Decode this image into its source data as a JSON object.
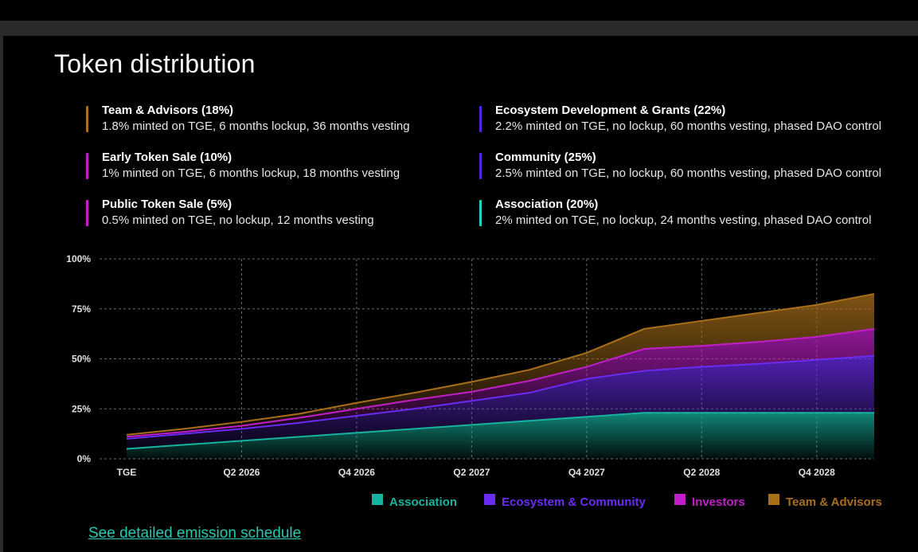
{
  "title": "Token distribution",
  "allocations": [
    {
      "name": "Team & Advisors  (18%)",
      "desc": "1.8% minted on TGE, 6 months lockup, 36 months vesting",
      "color": "#a86f1a"
    },
    {
      "name": "Early Token Sale (10%)",
      "desc": "1% minted on TGE, 6 months lockup, 18 months vesting",
      "color": "#c01fc8"
    },
    {
      "name": "Public Token Sale (5%)",
      "desc": "0.5% minted on TGE, no lockup, 12 months vesting",
      "color": "#c01fc8"
    },
    {
      "name": "Ecosystem Development & Grants (22%)",
      "desc": "2.2% minted on TGE, no lockup, 60 months vesting, phased DAO control",
      "color": "#5b21e0"
    },
    {
      "name": "Community (25%)",
      "desc": "2.5% minted on TGE, no lockup, 60 months vesting, phased DAO control",
      "color": "#5b21e0"
    },
    {
      "name": "Association (20%)",
      "desc": "2% minted on TGE, no lockup, 24 months vesting, phased DAO control",
      "color": "#22d3bf"
    }
  ],
  "chart_data": {
    "type": "area",
    "stacked": true,
    "x": [
      "TGE",
      "Q1 2026",
      "Q2 2026",
      "Q3 2026",
      "Q4 2026",
      "Q1 2027",
      "Q2 2027",
      "Q3 2027",
      "Q4 2027",
      "Q1 2028",
      "Q2 2028",
      "Q3 2028",
      "Q4 2028",
      "Q1 2029"
    ],
    "tick_labels": [
      "TGE",
      "Q2 2026",
      "Q4 2026",
      "Q2 2027",
      "Q4 2027",
      "Q2 2028",
      "Q4 2028"
    ],
    "ylim": [
      0,
      100
    ],
    "yticks": [
      "0%",
      "25%",
      "50%",
      "75%",
      "100%"
    ],
    "grid": true,
    "series": [
      {
        "name": "Association",
        "color": "#16b39e",
        "values": [
          5,
          7,
          9,
          11,
          13,
          15,
          17,
          19,
          21,
          23,
          23,
          23,
          23,
          23
        ]
      },
      {
        "name": "Ecosystem & Community",
        "color": "#6a2cf2",
        "values": [
          10,
          12.5,
          15,
          18,
          21.5,
          25,
          29,
          33,
          40,
          44,
          46,
          47.5,
          49.5,
          51.5
        ]
      },
      {
        "name": "Investors",
        "color": "#c01fc8",
        "values": [
          11,
          13.5,
          16.5,
          20.5,
          25,
          29.5,
          33.5,
          39,
          46,
          55,
          56.5,
          58.5,
          61,
          65
        ]
      },
      {
        "name": "Team & Advisors",
        "color": "#a86f1a",
        "values": [
          12,
          15,
          18.5,
          22.5,
          28,
          33,
          38.5,
          44.5,
          53,
          65,
          69,
          73,
          77,
          82.5
        ]
      }
    ]
  },
  "chart_legend": [
    {
      "label": "Association",
      "color": "#16b39e"
    },
    {
      "label": "Ecosystem & Community",
      "color": "#6a2cf2"
    },
    {
      "label": "Investors",
      "color": "#c01fc8"
    },
    {
      "label": "Team & Advisors",
      "color": "#a86f1a"
    }
  ],
  "link": {
    "label": "See detailed emission schedule"
  }
}
